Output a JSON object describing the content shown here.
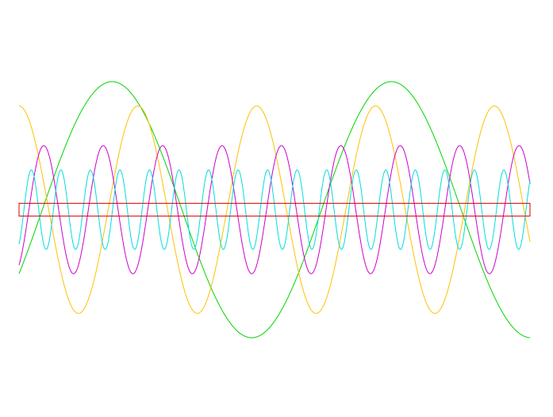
{
  "chart_data": {
    "type": "line",
    "title": "",
    "xlabel": "",
    "ylabel": "",
    "x_range": [
      0,
      1
    ],
    "ylim": [
      -1,
      1
    ],
    "grid": false,
    "legend": "none",
    "series": [
      {
        "color": "#00d400",
        "amplitude": 1.0,
        "cycles": 1.83,
        "phase_deg": -30,
        "form": "sine"
      },
      {
        "color": "#ffc000",
        "amplitude": 0.81,
        "cycles": 4.3,
        "phase_deg": 90,
        "form": "sine"
      },
      {
        "color": "#cc00cc",
        "amplitude": 0.5,
        "cycles": 8.6,
        "phase_deg": -60,
        "form": "sine"
      },
      {
        "color": "#00dddd",
        "amplitude": 0.31,
        "cycles": 17.3,
        "phase_deg": -60,
        "form": "sine"
      },
      {
        "color": "#dd0000",
        "amplitude": 0.05,
        "cycles": 0,
        "phase_deg": 0,
        "form": "band"
      }
    ]
  }
}
